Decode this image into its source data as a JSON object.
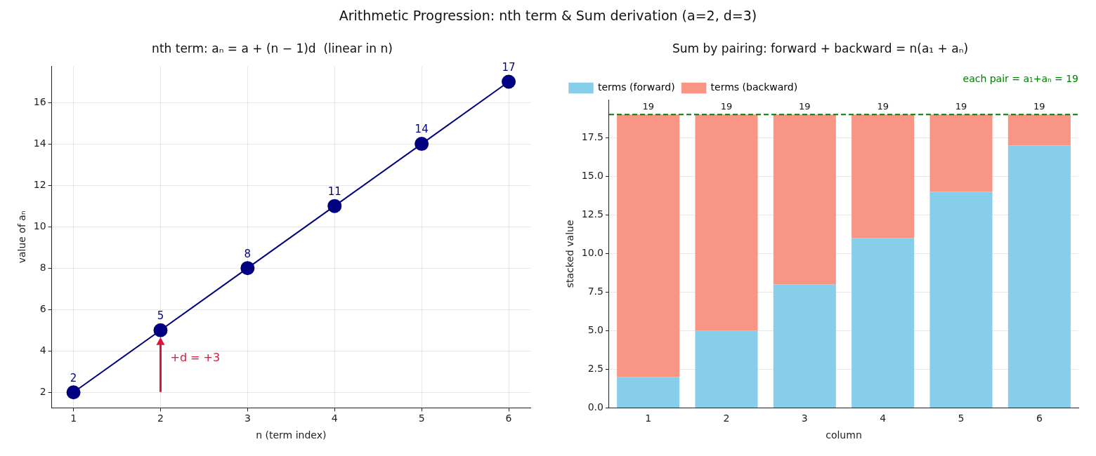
{
  "chart_data": [
    {
      "type": "line",
      "title": "nth term: aₙ = a + (n − 1)d  (linear in n)",
      "xlabel": "n (term index)",
      "ylabel": "value of aₙ",
      "annotations": [
        "Arithmetic Progression: nth term & Sum derivation (a=2, d=3)",
        {
          "text": "+d = +3",
          "x": 2,
          "y": 5
        }
      ],
      "x": [
        1,
        2,
        3,
        4,
        5,
        6
      ],
      "series": [
        {
          "color": "#000080",
          "values": [
            2,
            5,
            8,
            11,
            14,
            17
          ]
        }
      ],
      "xlim": [
        0.75,
        6.25
      ],
      "xticks": [
        1,
        2,
        3,
        4,
        5,
        6
      ],
      "ylim": [
        1.25,
        17.75
      ],
      "yticks": [
        2,
        4,
        6,
        8,
        10,
        12,
        14,
        16
      ],
      "grid": true,
      "marker": "circle",
      "line_style": "solid",
      "data_labels": true,
      "legend": false
    },
    {
      "type": "bar",
      "title": "Sum by pairing: forward + backward = n(a₁ + aₙ)",
      "xlabel": "column",
      "ylabel": "stacked value",
      "categories": [
        "1",
        "2",
        "3",
        "4",
        "5",
        "6"
      ],
      "stacked": true,
      "series": [
        {
          "name": "terms (forward)",
          "color": "#87ceeb",
          "values": [
            2,
            5,
            8,
            11,
            14,
            17
          ]
        },
        {
          "name": "terms (backward)",
          "color": "#f99585",
          "values": [
            17,
            14,
            11,
            8,
            5,
            2
          ]
        }
      ],
      "totals": [
        "19",
        "19",
        "19",
        "19",
        "19",
        "19"
      ],
      "ylim": [
        0,
        19.95
      ],
      "yticks": [
        {
          "value": 0,
          "label": "0.0"
        },
        {
          "value": 2.5,
          "label": "2.5"
        },
        {
          "value": 5,
          "label": "5.0"
        },
        {
          "value": 7.5,
          "label": "7.5"
        },
        {
          "value": 10,
          "label": "10.0"
        },
        {
          "value": 12.5,
          "label": "12.5"
        },
        {
          "value": 15,
          "label": "15.0"
        },
        {
          "value": 17.5,
          "label": "17.5"
        }
      ],
      "ref_lines": [
        {
          "axis": "y",
          "value": 19,
          "label": "each pair = a₁+aₙ = 19",
          "color": "#008000",
          "line_style": "dashed"
        }
      ],
      "grid": "y",
      "legend": "top left"
    }
  ]
}
